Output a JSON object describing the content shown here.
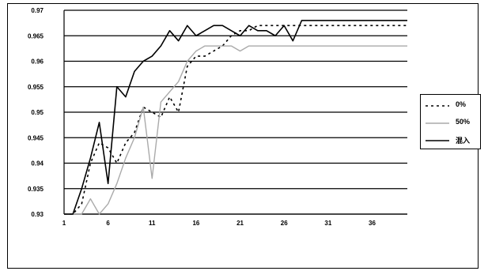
{
  "chart_data": {
    "type": "line",
    "x": [
      1,
      2,
      3,
      4,
      5,
      6,
      7,
      8,
      9,
      10,
      11,
      12,
      13,
      14,
      15,
      16,
      17,
      18,
      19,
      20,
      21,
      22,
      23,
      24,
      25,
      26,
      27,
      28,
      29,
      30,
      31,
      32,
      33,
      34,
      35,
      36,
      37,
      38,
      39,
      40
    ],
    "xlim": [
      1,
      40
    ],
    "x_ticks": [
      1,
      6,
      11,
      16,
      21,
      26,
      31,
      36
    ],
    "y_ticks": [
      0.93,
      0.935,
      0.94,
      0.945,
      0.95,
      0.955,
      0.96,
      0.965,
      0.97
    ],
    "y_tick_labels": [
      "0.93",
      "0.935",
      "0.94",
      "0.945",
      "0.95",
      "0.955",
      "0.96",
      "0.965",
      "0.97"
    ],
    "ylim": [
      0.93,
      0.97
    ],
    "grid": {
      "horizontal": true,
      "vertical": false
    },
    "legend_position": "right",
    "series": [
      {
        "name": "0%",
        "style": "dotted",
        "color": "#000000",
        "values": [
          0.93,
          0.93,
          0.932,
          0.94,
          0.944,
          0.943,
          0.94,
          0.944,
          0.946,
          0.951,
          0.95,
          0.949,
          0.953,
          0.95,
          0.959,
          0.961,
          0.961,
          0.962,
          0.963,
          0.965,
          0.966,
          0.966,
          0.967,
          0.967,
          0.967,
          0.967,
          0.967,
          0.967,
          0.967,
          0.967,
          0.967,
          0.967,
          0.967,
          0.967,
          0.967,
          0.967,
          0.967,
          0.967,
          0.967,
          0.967
        ]
      },
      {
        "name": "50%",
        "style": "solid",
        "color": "#aaaaaa",
        "values": [
          0.93,
          0.93,
          0.93,
          0.933,
          0.93,
          0.932,
          0.936,
          0.941,
          0.945,
          0.951,
          0.937,
          0.952,
          0.954,
          0.956,
          0.96,
          0.962,
          0.963,
          0.963,
          0.963,
          0.963,
          0.962,
          0.963,
          0.963,
          0.963,
          0.963,
          0.963,
          0.963,
          0.963,
          0.963,
          0.963,
          0.963,
          0.963,
          0.963,
          0.963,
          0.963,
          0.963,
          0.963,
          0.963,
          0.963,
          0.963
        ]
      },
      {
        "name": "混入",
        "style": "solid",
        "color": "#000000",
        "values": [
          0.93,
          0.93,
          0.935,
          0.941,
          0.948,
          0.936,
          0.955,
          0.953,
          0.958,
          0.96,
          0.961,
          0.963,
          0.966,
          0.964,
          0.967,
          0.965,
          0.966,
          0.967,
          0.967,
          0.966,
          0.965,
          0.967,
          0.966,
          0.966,
          0.965,
          0.967,
          0.964,
          0.968,
          0.968,
          0.968,
          0.968,
          0.968,
          0.968,
          0.968,
          0.968,
          0.968,
          0.968,
          0.968,
          0.968,
          0.968
        ]
      }
    ]
  }
}
